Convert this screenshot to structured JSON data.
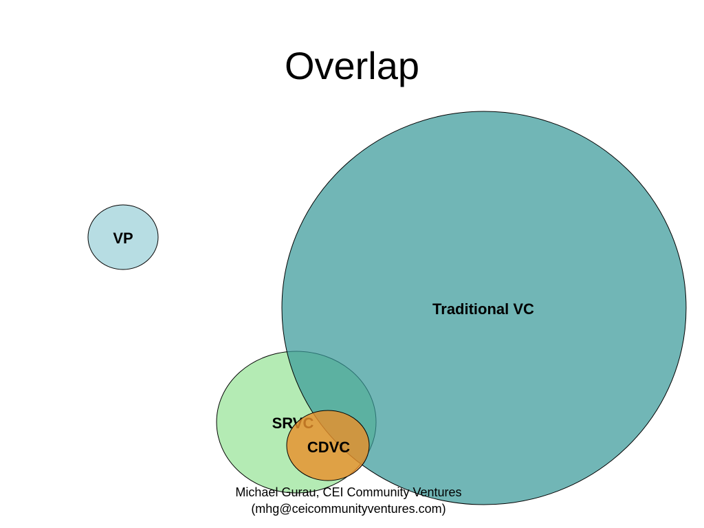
{
  "slide": {
    "title": "Overlap"
  },
  "diagram": {
    "circles": [
      {
        "id": "vp",
        "label": "VP",
        "fill": "#b7dde3"
      },
      {
        "id": "traditional-vc",
        "label": "Traditional VC",
        "fill": "#3f9b9b"
      },
      {
        "id": "srvc",
        "label": "SRVC",
        "fill": "#a4e6a4"
      },
      {
        "id": "cdvc",
        "label": "CDVC",
        "fill": "#e3953b"
      }
    ]
  },
  "footer": {
    "line1": "Michael Gurau, CEI Community Ventures",
    "line2": "(mhg@ceicommunityventures.com)"
  }
}
